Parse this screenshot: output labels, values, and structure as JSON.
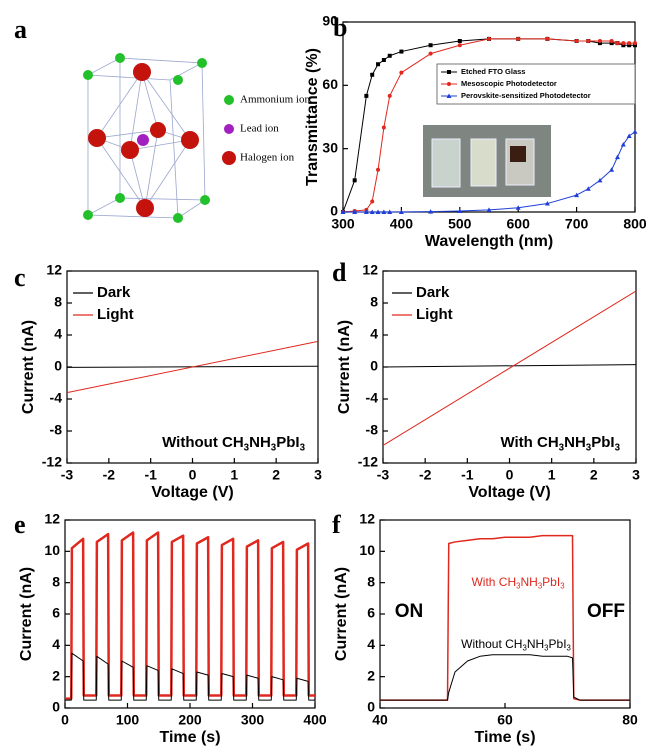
{
  "structure": {
    "panel_label": "a",
    "legend": [
      {
        "label": "Ammonium ion",
        "color": "#22c02a"
      },
      {
        "label": "Lead ion",
        "color": "#a21fc0"
      },
      {
        "label": "Halogen ion",
        "color": "#c4120c"
      }
    ]
  },
  "chart_data": [
    {
      "type": "line",
      "panel_label": "b",
      "xlabel": "Wavelength (nm)",
      "ylabel": "Transmittance (%)",
      "xlim": [
        300,
        800
      ],
      "ylim": [
        0,
        90
      ],
      "xticks": [
        300,
        400,
        500,
        600,
        700,
        800
      ],
      "yticks": [
        0,
        30,
        60,
        90
      ],
      "legend": "upper right",
      "x": [
        300,
        320,
        340,
        350,
        360,
        370,
        380,
        400,
        450,
        500,
        550,
        600,
        650,
        700,
        720,
        740,
        760,
        770,
        780,
        790,
        800
      ],
      "series": [
        {
          "name": "Etched FTO Glass",
          "color": "#000000",
          "marker": "square",
          "values": [
            0,
            15,
            55,
            65,
            70,
            72,
            74,
            76,
            79,
            81,
            82,
            82,
            82,
            81,
            81,
            80,
            80,
            80,
            79,
            79,
            79
          ]
        },
        {
          "name": "Mesoscopic Photodetector",
          "color": "#e0281e",
          "marker": "circle",
          "values": [
            0,
            0.5,
            1,
            5,
            20,
            40,
            55,
            66,
            75,
            79,
            82,
            82,
            82,
            81,
            81,
            81,
            81,
            80,
            80,
            80,
            80
          ]
        },
        {
          "name": "Perovskite-sensitized Photodetector",
          "color": "#1f3fd8",
          "marker": "triangle",
          "values": [
            0,
            0,
            0,
            0,
            0,
            0,
            0,
            0,
            0.2,
            0.5,
            1,
            2,
            4,
            8,
            11,
            15,
            20,
            26,
            32,
            36,
            38
          ]
        }
      ]
    },
    {
      "type": "line",
      "panel_label": "c",
      "xlabel": "Voltage (V)",
      "ylabel": "Current (nA)",
      "xlim": [
        -3,
        3
      ],
      "ylim": [
        -12,
        12
      ],
      "xticks": [
        -3,
        -2,
        -1,
        0,
        1,
        2,
        3
      ],
      "yticks": [
        -12,
        -8,
        -4,
        0,
        4,
        8,
        12
      ],
      "legend": "upper left",
      "x": [
        -3,
        3
      ],
      "series": [
        {
          "name": "Dark",
          "color": "#000000",
          "values": [
            -0.05,
            0.1
          ]
        },
        {
          "name": "Light",
          "color": "#e0281e",
          "values": [
            -3.2,
            3.2
          ]
        }
      ],
      "annotations": [
        {
          "parts": [
            "Without CH",
            "3",
            "NH",
            "3",
            "PbI",
            "3"
          ],
          "color": "#000000"
        }
      ]
    },
    {
      "type": "line",
      "panel_label": "d",
      "xlabel": "Voltage (V)",
      "ylabel": "Current (nA)",
      "xlim": [
        -3,
        3
      ],
      "ylim": [
        -12,
        12
      ],
      "xticks": [
        -3,
        -2,
        -1,
        0,
        1,
        2,
        3
      ],
      "yticks": [
        -12,
        -8,
        -4,
        0,
        4,
        8,
        12
      ],
      "legend": "upper left",
      "x": [
        -3,
        3
      ],
      "series": [
        {
          "name": "Dark",
          "color": "#000000",
          "values": [
            0,
            0.3
          ]
        },
        {
          "name": "Light",
          "color": "#e0281e",
          "values": [
            -9.8,
            9.5
          ]
        }
      ],
      "annotations": [
        {
          "parts": [
            "With CH",
            "3",
            "NH",
            "3",
            "PbI",
            "3"
          ],
          "color": "#000000"
        }
      ]
    },
    {
      "type": "line",
      "panel_label": "e",
      "xlabel": "Time (s)",
      "ylabel": "Current (nA)",
      "xlim": [
        0,
        400
      ],
      "ylim": [
        0,
        12
      ],
      "xticks": [
        0,
        100,
        200,
        300,
        400
      ],
      "yticks": [
        0,
        2,
        4,
        6,
        8,
        10,
        12
      ],
      "x": [
        0,
        10,
        11,
        29,
        30,
        50,
        51,
        69,
        70,
        90,
        91,
        109,
        110,
        130,
        131,
        149,
        150,
        170,
        171,
        189,
        190,
        210,
        211,
        229,
        230,
        250,
        251,
        269,
        270,
        290,
        291,
        309,
        310,
        330,
        331,
        349,
        350,
        370,
        371,
        389,
        390,
        400
      ],
      "series": [
        {
          "color": "#e0281e",
          "width": 2.5,
          "values": [
            0.6,
            0.6,
            10.2,
            10.8,
            0.8,
            0.8,
            10.6,
            11.1,
            0.8,
            0.8,
            10.7,
            11.2,
            0.8,
            0.8,
            10.7,
            11.2,
            0.8,
            0.8,
            10.6,
            11.0,
            0.8,
            0.8,
            10.5,
            10.9,
            0.8,
            0.8,
            10.4,
            10.8,
            0.8,
            0.8,
            10.3,
            10.7,
            0.8,
            0.8,
            10.2,
            10.6,
            0.8,
            0.8,
            10.1,
            10.5,
            0.8,
            0.8
          ]
        },
        {
          "color": "#000000",
          "width": 1,
          "values": [
            0.5,
            0.5,
            3.5,
            3.0,
            0.5,
            0.5,
            3.3,
            2.8,
            0.5,
            0.5,
            3.0,
            2.6,
            0.5,
            0.5,
            2.7,
            2.4,
            0.5,
            0.5,
            2.5,
            2.2,
            0.5,
            0.5,
            2.3,
            2.1,
            0.5,
            0.5,
            2.2,
            2.0,
            0.5,
            0.5,
            2.1,
            1.9,
            0.5,
            0.5,
            2.0,
            1.8,
            0.5,
            0.5,
            1.9,
            1.7,
            0.5,
            0.5
          ]
        }
      ]
    },
    {
      "type": "line",
      "panel_label": "f",
      "xlabel": "Time (s)",
      "ylabel": "Current (nA)",
      "xlim": [
        40,
        80
      ],
      "ylim": [
        0,
        12
      ],
      "xticks": [
        40,
        60,
        80
      ],
      "yticks": [
        0,
        2,
        4,
        6,
        8,
        10,
        12
      ],
      "x": [
        40,
        50.8,
        51,
        52,
        54,
        56,
        58,
        60,
        62,
        64,
        66,
        68,
        70,
        70.8,
        71,
        72,
        80
      ],
      "series": [
        {
          "color": "#e0281e",
          "width": 1.5,
          "values": [
            0.5,
            0.5,
            10.5,
            10.6,
            10.7,
            10.8,
            10.8,
            10.9,
            10.9,
            10.9,
            11.0,
            11.0,
            11.0,
            11.0,
            0.6,
            0.5,
            0.5
          ]
        },
        {
          "color": "#000000",
          "width": 1,
          "values": [
            0.5,
            0.5,
            1.0,
            2.3,
            3.0,
            3.3,
            3.4,
            3.4,
            3.4,
            3.4,
            3.3,
            3.3,
            3.3,
            3.2,
            0.7,
            0.5,
            0.5
          ]
        }
      ],
      "annotations": [
        {
          "parts": [
            "ON"
          ],
          "color": "#000000"
        },
        {
          "parts": [
            "OFF"
          ],
          "color": "#000000"
        },
        {
          "parts": [
            "With CH",
            "3",
            "NH",
            "3",
            "PbI",
            "3"
          ],
          "color": "#e0281e"
        },
        {
          "parts": [
            "Without CH",
            "3",
            "NH",
            "3",
            "PbI",
            "3"
          ],
          "color": "#000000"
        }
      ]
    }
  ]
}
